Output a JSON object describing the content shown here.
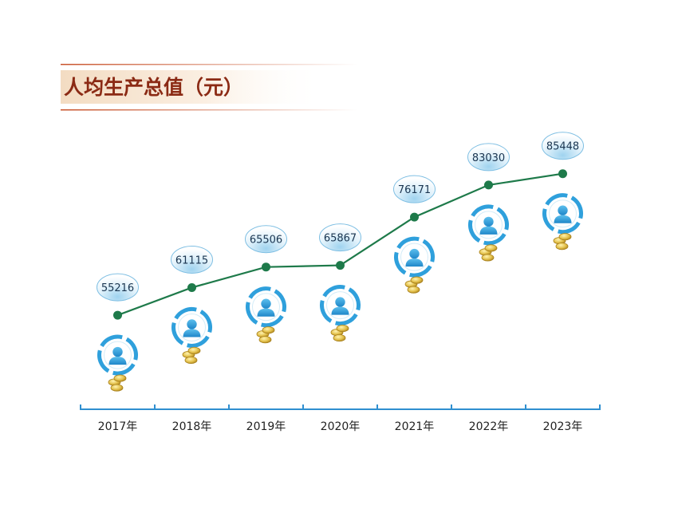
{
  "chart_data": {
    "type": "line",
    "title": "人均生产总值（元）",
    "categories": [
      "2017年",
      "2018年",
      "2019年",
      "2020年",
      "2021年",
      "2022年",
      "2023年"
    ],
    "values": [
      55216,
      61115,
      65506,
      65867,
      76171,
      83030,
      85448
    ],
    "ylim": [
      30000,
      90000
    ],
    "grid": false,
    "legend": "none",
    "colors": {
      "line": "#1e7a4a",
      "marker": "#1e7a4a",
      "axis": "#2f8fd0",
      "title_text": "#8b2a14",
      "title_rule": "#c8522a",
      "badge_text": "#1a3550",
      "icon_blue": "#2fa0dc",
      "coin": "#d9b43a"
    },
    "icons": [
      "person-icon",
      "coins-icon"
    ]
  }
}
